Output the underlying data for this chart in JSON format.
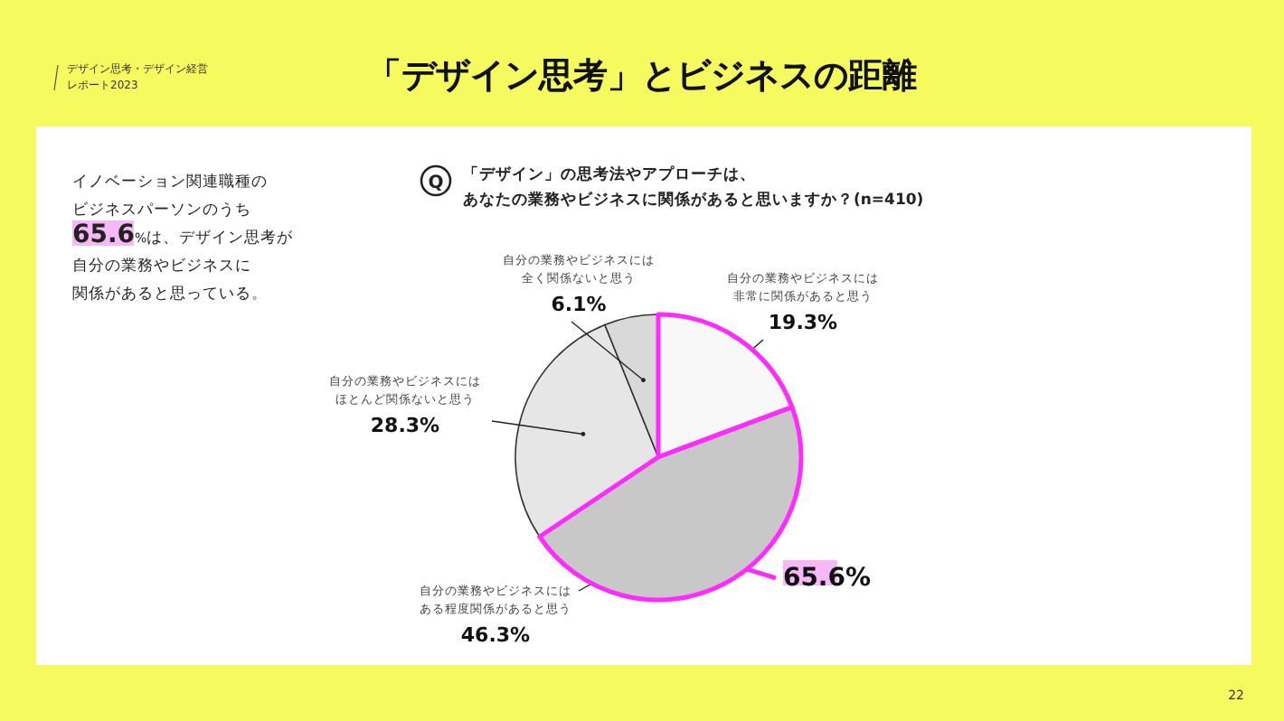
{
  "chart_data": {
    "type": "pie",
    "title": "「デザイン思考」とビジネスの距離",
    "subtitle": "「デザイン」の思考法やアプローチは、あなたの業務やビジネスに関係があると思いますか？(n=410)",
    "categories": [
      "自分の業務やビジネスには非常に関係があると思う",
      "自分の業務やビジネスにはある程度関係があると思う",
      "自分の業務やビジネスにはほとんど関係ないと思う",
      "自分の業務やビジネスには全く関係ないと思う"
    ],
    "values": [
      19.3,
      46.3,
      28.3,
      6.1
    ],
    "value_labels": [
      "19.3%",
      "46.3%",
      "28.3%",
      "6.1%"
    ],
    "colors": [
      "#f8f8f8",
      "#c8c8c8",
      "#e6e6e6",
      "#d9d9d9"
    ],
    "annotations": [
      "デザイン思考・デザイン経営レポート2023",
      "イノベーション関連職種のビジネスパーソンのうち65.6%は、デザイン思考が自分の業務やビジネスに関係があると思っている。",
      "Q",
      "65.6%",
      "22"
    ]
  }
}
